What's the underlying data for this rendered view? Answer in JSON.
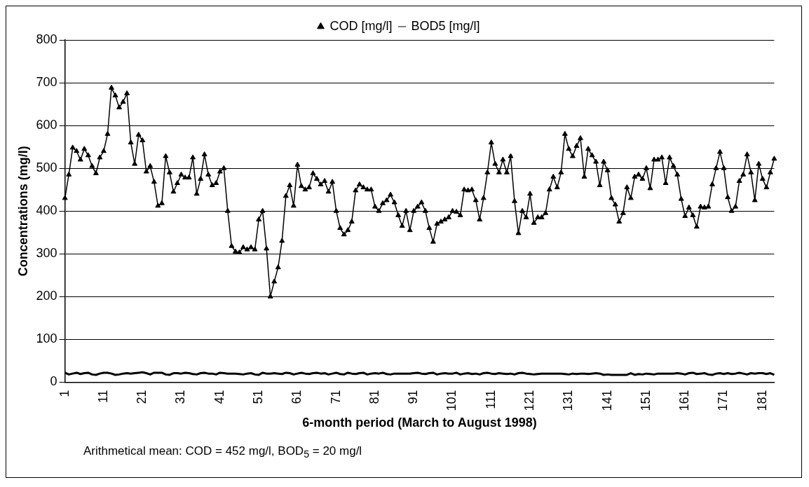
{
  "chart_data": {
    "type": "line",
    "xlabel": "6-month period (March to August 1998)",
    "ylabel": "Concentrations (mg/l)",
    "categories": [
      "1",
      null,
      null,
      null,
      null,
      null,
      null,
      null,
      null,
      null,
      "11",
      null,
      null,
      null,
      null,
      null,
      null,
      null,
      null,
      null,
      "21",
      null,
      null,
      null,
      null,
      null,
      null,
      null,
      null,
      null,
      "31",
      null,
      null,
      null,
      null,
      null,
      null,
      null,
      null,
      null,
      "41",
      null,
      null,
      null,
      null,
      null,
      null,
      null,
      null,
      null,
      "51",
      null,
      null,
      null,
      null,
      null,
      null,
      null,
      null,
      null,
      "61",
      null,
      null,
      null,
      null,
      null,
      null,
      null,
      null,
      null,
      "71",
      null,
      null,
      null,
      null,
      null,
      null,
      null,
      null,
      null,
      "81",
      null,
      null,
      null,
      null,
      null,
      null,
      null,
      null,
      null,
      "91",
      null,
      null,
      null,
      null,
      null,
      null,
      null,
      null,
      null,
      "101",
      null,
      null,
      null,
      null,
      null,
      null,
      null,
      null,
      null,
      "111",
      null,
      null,
      null,
      null,
      null,
      null,
      null,
      null,
      null,
      "121",
      null,
      null,
      null,
      null,
      null,
      null,
      null,
      null,
      null,
      "131",
      null,
      null,
      null,
      null,
      null,
      null,
      null,
      null,
      null,
      "141",
      null,
      null,
      null,
      null,
      null,
      null,
      null,
      null,
      null,
      "151",
      null,
      null,
      null,
      null,
      null,
      null,
      null,
      null,
      null,
      "161",
      null,
      null,
      null,
      null,
      null,
      null,
      null,
      null,
      null,
      "171",
      null,
      null,
      null,
      null,
      null,
      null,
      null,
      null,
      null,
      "181",
      null,
      null,
      null
    ],
    "series": [
      {
        "name": "COD [mg/l]",
        "color": "#000000",
        "marker": "triangle",
        "values": [
          430,
          485,
          548,
          540,
          520,
          545,
          530,
          505,
          488,
          525,
          540,
          580,
          688,
          670,
          642,
          655,
          675,
          560,
          510,
          578,
          565,
          492,
          505,
          468,
          412,
          418,
          528,
          490,
          445,
          465,
          485,
          478,
          478,
          525,
          440,
          475,
          532,
          485,
          460,
          465,
          492,
          500,
          400,
          318,
          305,
          303,
          315,
          310,
          315,
          310,
          380,
          400,
          312,
          200,
          235,
          268,
          330,
          435,
          460,
          412,
          508,
          458,
          450,
          455,
          488,
          475,
          462,
          470,
          445,
          468,
          400,
          360,
          345,
          355,
          375,
          448,
          462,
          455,
          450,
          450,
          410,
          400,
          418,
          425,
          438,
          420,
          390,
          365,
          400,
          355,
          400,
          410,
          420,
          400,
          360,
          328,
          370,
          375,
          380,
          385,
          400,
          398,
          390,
          450,
          448,
          450,
          425,
          380,
          430,
          490,
          560,
          510,
          490,
          520,
          490,
          528,
          423,
          348,
          400,
          385,
          440,
          372,
          385,
          385,
          395,
          450,
          480,
          455,
          490,
          580,
          545,
          528,
          552,
          570,
          480,
          545,
          530,
          515,
          460,
          515,
          495,
          430,
          415,
          375,
          395,
          455,
          430,
          480,
          485,
          475,
          500,
          453,
          520,
          520,
          525,
          465,
          525,
          505,
          485,
          428,
          388,
          408,
          390,
          363,
          410,
          408,
          410,
          462,
          500,
          538,
          500,
          432,
          400,
          410,
          470,
          485,
          532,
          490,
          425,
          510,
          475,
          455,
          490,
          522
        ]
      },
      {
        "name": "BOD5 [mg/l]",
        "color": "#000000",
        "marker": "none",
        "values": [
          22,
          18,
          20,
          22,
          19,
          21,
          22,
          18,
          17,
          20,
          22,
          22,
          20,
          17,
          18,
          20,
          21,
          20,
          21,
          22,
          23,
          21,
          18,
          22,
          22,
          22,
          18,
          17,
          21,
          21,
          20,
          22,
          21,
          19,
          18,
          21,
          22,
          20,
          20,
          18,
          22,
          21,
          20,
          20,
          20,
          19,
          18,
          20,
          21,
          18,
          17,
          22,
          20,
          20,
          21,
          20,
          19,
          22,
          21,
          18,
          20,
          22,
          20,
          19,
          21,
          22,
          20,
          21,
          18,
          20,
          22,
          19,
          18,
          22,
          20,
          19,
          21,
          22,
          18,
          20,
          21,
          20,
          22,
          19,
          18,
          20,
          20,
          20,
          20,
          20,
          21,
          22,
          20,
          19,
          21,
          22,
          18,
          20,
          21,
          20,
          20,
          22,
          18,
          20,
          21,
          19,
          20,
          18,
          21,
          22,
          20,
          19,
          21,
          20,
          19,
          20,
          18,
          21,
          22,
          20,
          19,
          18,
          19,
          20,
          20,
          20,
          20,
          20,
          20,
          19,
          18,
          20,
          19,
          20,
          20,
          19,
          20,
          21,
          20,
          17,
          18,
          17,
          17,
          17,
          17,
          17,
          21,
          17,
          19,
          18,
          20,
          19,
          18,
          20,
          20,
          20,
          20,
          20,
          21,
          20,
          18,
          21,
          22,
          19,
          20,
          21,
          18,
          17,
          20,
          21,
          19,
          21,
          19,
          20,
          22,
          20,
          18,
          21,
          20,
          21,
          21,
          19,
          21,
          17
        ]
      }
    ],
    "ylim": [
      0,
      800
    ],
    "yticks": [
      0,
      100,
      200,
      300,
      400,
      500,
      600,
      700,
      800
    ],
    "grid": "y",
    "legend": "top",
    "annotations": [
      "Arithmetical mean: COD = 452 mg/l, BOD$_{5}$ = 20 mg/l"
    ]
  }
}
